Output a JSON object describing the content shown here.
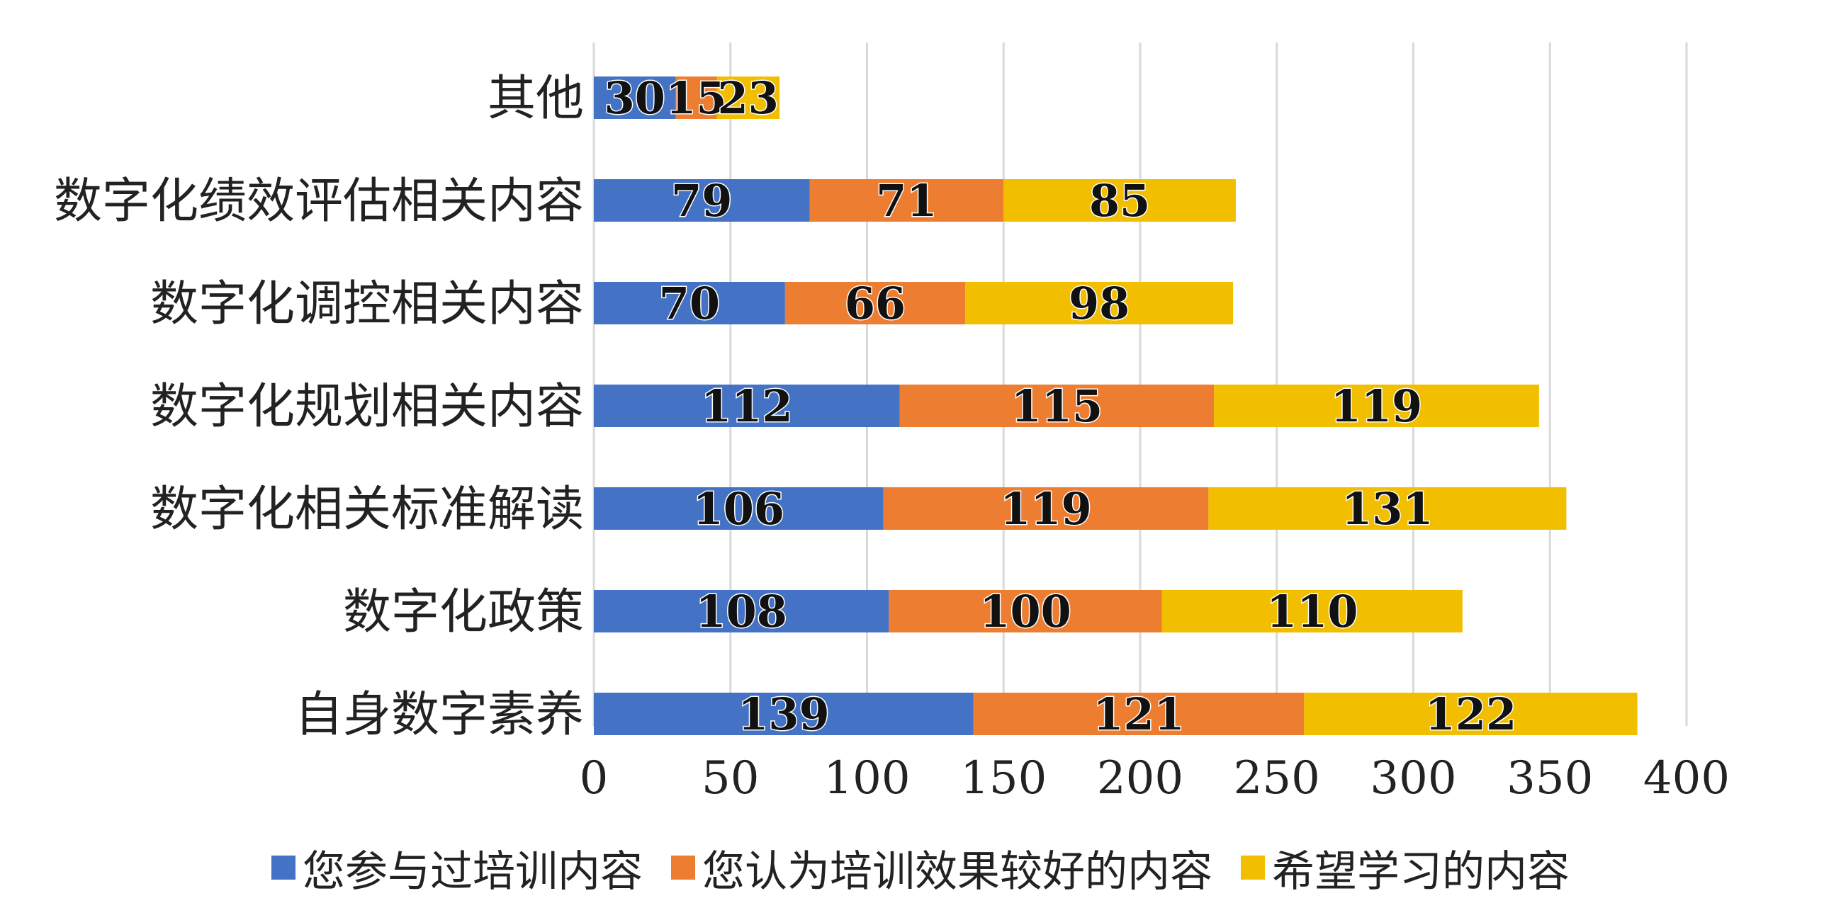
{
  "chart_data": {
    "type": "bar",
    "orientation": "horizontal",
    "stacked": true,
    "categories": [
      "其他",
      "数字化绩效评估相关内容",
      "数字化调控相关内容",
      "数字化规划相关内容",
      "数字化相关标准解读",
      "数字化政策",
      "自身数字素养"
    ],
    "series": [
      {
        "name": "您参与过培训内容",
        "color": "#4472C4",
        "values": [
          30,
          79,
          70,
          112,
          106,
          108,
          139
        ]
      },
      {
        "name": "您认为培训效果较好的内容",
        "color": "#ED7D31",
        "values": [
          15,
          71,
          66,
          115,
          119,
          100,
          121
        ]
      },
      {
        "name": "希望学习的内容",
        "color": "#F2BE00",
        "values": [
          23,
          85,
          98,
          119,
          131,
          110,
          122
        ]
      }
    ],
    "xlim": [
      0,
      400
    ],
    "xticks": [
      0,
      50,
      100,
      150,
      200,
      250,
      300,
      350,
      400
    ],
    "grid": true,
    "legend_position": "bottom",
    "title": "",
    "xlabel": "",
    "ylabel": ""
  }
}
